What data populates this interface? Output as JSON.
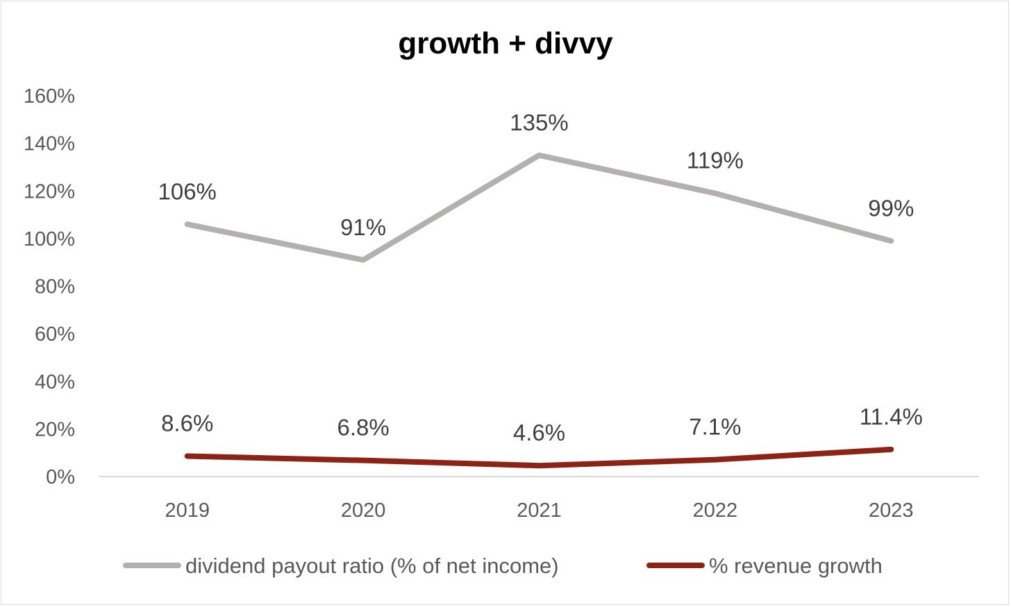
{
  "chart_data": {
    "type": "line",
    "title": "growth + divvy",
    "xlabel": "",
    "ylabel": "",
    "categories": [
      "2019",
      "2020",
      "2021",
      "2022",
      "2023"
    ],
    "ylim": [
      0,
      160
    ],
    "yticks": [
      0,
      20,
      40,
      60,
      80,
      100,
      120,
      140,
      160
    ],
    "ytick_labels": [
      "0%",
      "20%",
      "40%",
      "60%",
      "80%",
      "100%",
      "120%",
      "140%",
      "160%"
    ],
    "grid": false,
    "legend_position": "bottom",
    "series": [
      {
        "name": "dividend payout ratio (% of net income)",
        "values": [
          106,
          91,
          135,
          119,
          99
        ],
        "labels": [
          "106%",
          "91%",
          "135%",
          "119%",
          "99%"
        ],
        "color": "#b4b0b0"
      },
      {
        "name": "% revenue growth",
        "values": [
          8.6,
          6.8,
          4.6,
          7.1,
          11.4
        ],
        "labels": [
          "8.6%",
          "6.8%",
          "4.6%",
          "7.1%",
          "11.4%"
        ],
        "color": "#8b2316"
      }
    ]
  }
}
